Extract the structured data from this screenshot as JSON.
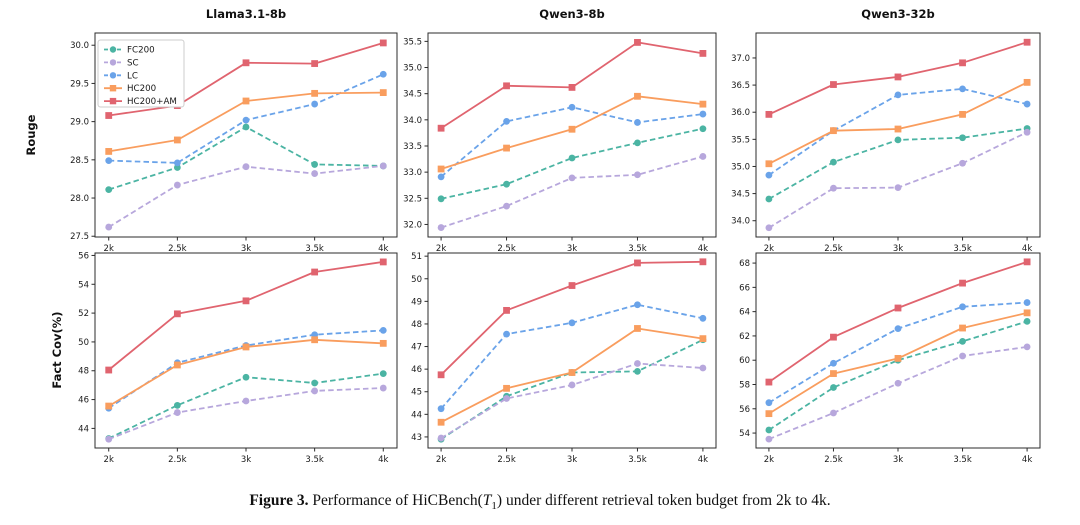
{
  "caption": {
    "label": "Figure 3.",
    "before": " Performance of HiCBench(",
    "t_italic": "T",
    "t_subscript": "1",
    "after": ") under different retrieval token budget from 2k to 4k."
  },
  "series_styles": [
    {
      "name": "FC200",
      "color": "#4bb4a3",
      "line": "dashed",
      "marker": "circle"
    },
    {
      "name": "SC",
      "color": "#b7a7dc",
      "line": "dashed",
      "marker": "circle"
    },
    {
      "name": "LC",
      "color": "#6aa3e9",
      "line": "dashed",
      "marker": "circle"
    },
    {
      "name": "HC200",
      "color": "#f99d5e",
      "line": "solid",
      "marker": "square"
    },
    {
      "name": "HC200+AM",
      "color": "#e0646f",
      "line": "solid",
      "marker": "square"
    }
  ],
  "chart_data": [
    {
      "type": "line",
      "title": "Llama3.1-8b",
      "ylabel": "Rouge",
      "legend": true,
      "grid": false,
      "categories": [
        "2k",
        "2.5k",
        "3k",
        "3.5k",
        "4k"
      ],
      "ylim": [
        27.49,
        30.16
      ],
      "yticks": [
        27.5,
        28.0,
        28.5,
        29.0,
        29.5,
        30.0
      ],
      "ytick_labels": [
        "27.5",
        "28.0",
        "28.5",
        "29.0",
        "29.5",
        "30.0"
      ],
      "series": [
        {
          "name": "FC200",
          "values": [
            28.11,
            28.4,
            28.93,
            28.44,
            28.42
          ]
        },
        {
          "name": "SC",
          "values": [
            27.62,
            28.17,
            28.41,
            28.32,
            28.42
          ]
        },
        {
          "name": "LC",
          "values": [
            28.49,
            28.46,
            29.02,
            29.23,
            29.62
          ]
        },
        {
          "name": "HC200",
          "values": [
            28.61,
            28.76,
            29.27,
            29.37,
            29.38
          ]
        },
        {
          "name": "HC200+AM",
          "values": [
            29.08,
            29.21,
            29.77,
            29.76,
            30.03
          ]
        }
      ]
    },
    {
      "type": "line",
      "title": "Qwen3-8b",
      "ylabel": "",
      "legend": false,
      "grid": false,
      "categories": [
        "2k",
        "2.5k",
        "3k",
        "3.5k",
        "4k"
      ],
      "ylim": [
        31.76,
        35.66
      ],
      "yticks": [
        32.0,
        32.5,
        33.0,
        33.5,
        34.0,
        34.5,
        35.0,
        35.5
      ],
      "ytick_labels": [
        "32.0",
        "32.5",
        "33.0",
        "33.5",
        "34.0",
        "34.5",
        "35.0",
        "35.5"
      ],
      "series": [
        {
          "name": "FC200",
          "values": [
            32.49,
            32.77,
            33.27,
            33.56,
            33.83
          ]
        },
        {
          "name": "SC",
          "values": [
            31.94,
            32.35,
            32.89,
            32.95,
            33.3
          ]
        },
        {
          "name": "LC",
          "values": [
            32.91,
            33.97,
            34.24,
            33.95,
            34.11
          ]
        },
        {
          "name": "HC200",
          "values": [
            33.06,
            33.46,
            33.82,
            34.45,
            34.3
          ]
        },
        {
          "name": "HC200+AM",
          "values": [
            33.84,
            34.65,
            34.62,
            35.48,
            35.27
          ]
        }
      ]
    },
    {
      "type": "line",
      "title": "Qwen3-32b",
      "ylabel": "",
      "legend": false,
      "grid": false,
      "categories": [
        "2k",
        "2.5k",
        "3k",
        "3.5k",
        "4k"
      ],
      "ylim": [
        33.7,
        37.46
      ],
      "yticks": [
        34.0,
        34.5,
        35.0,
        35.5,
        36.0,
        36.5,
        37.0
      ],
      "ytick_labels": [
        "34.0",
        "34.5",
        "35.0",
        "35.5",
        "36.0",
        "36.5",
        "37.0"
      ],
      "series": [
        {
          "name": "FC200",
          "values": [
            34.4,
            35.08,
            35.49,
            35.53,
            35.7
          ]
        },
        {
          "name": "SC",
          "values": [
            33.87,
            34.6,
            34.61,
            35.06,
            35.63
          ]
        },
        {
          "name": "LC",
          "values": [
            34.84,
            35.66,
            36.32,
            36.43,
            36.15
          ]
        },
        {
          "name": "HC200",
          "values": [
            35.05,
            35.66,
            35.69,
            35.96,
            36.55
          ]
        },
        {
          "name": "HC200+AM",
          "values": [
            35.96,
            36.51,
            36.65,
            36.91,
            37.29
          ]
        }
      ]
    },
    {
      "type": "line",
      "title": "",
      "ylabel": "Fact Cov(%)",
      "legend": false,
      "grid": false,
      "categories": [
        "2k",
        "2.5k",
        "3k",
        "3.5k",
        "4k"
      ],
      "ylim": [
        42.64,
        56.17
      ],
      "yticks": [
        44,
        46,
        48,
        50,
        52,
        54,
        56
      ],
      "ytick_labels": [
        "44",
        "46",
        "48",
        "50",
        "52",
        "54",
        "56"
      ],
      "series": [
        {
          "name": "FC200",
          "values": [
            43.3,
            45.6,
            47.55,
            47.15,
            47.8
          ]
        },
        {
          "name": "SC",
          "values": [
            43.25,
            45.1,
            45.9,
            46.6,
            46.8
          ]
        },
        {
          "name": "LC",
          "values": [
            45.4,
            48.55,
            49.75,
            50.5,
            50.8
          ]
        },
        {
          "name": "HC200",
          "values": [
            45.55,
            48.4,
            49.65,
            50.15,
            49.9
          ]
        },
        {
          "name": "HC200+AM",
          "values": [
            48.05,
            51.95,
            52.85,
            54.85,
            55.55
          ]
        }
      ]
    },
    {
      "type": "line",
      "title": "",
      "ylabel": "",
      "legend": false,
      "grid": false,
      "categories": [
        "2k",
        "2.5k",
        "3k",
        "3.5k",
        "4k"
      ],
      "ylim": [
        42.51,
        51.14
      ],
      "yticks": [
        43,
        44,
        45,
        46,
        47,
        48,
        49,
        50,
        51
      ],
      "ytick_labels": [
        "43",
        "44",
        "45",
        "46",
        "47",
        "48",
        "49",
        "50",
        "51"
      ],
      "series": [
        {
          "name": "FC200",
          "values": [
            42.9,
            44.8,
            45.85,
            45.9,
            47.3
          ]
        },
        {
          "name": "SC",
          "values": [
            42.95,
            44.7,
            45.3,
            46.25,
            46.05
          ]
        },
        {
          "name": "LC",
          "values": [
            44.25,
            47.55,
            48.05,
            48.85,
            48.25
          ]
        },
        {
          "name": "HC200",
          "values": [
            43.65,
            45.15,
            45.85,
            47.8,
            47.35
          ]
        },
        {
          "name": "HC200+AM",
          "values": [
            45.75,
            48.6,
            49.7,
            50.7,
            50.75
          ]
        }
      ]
    },
    {
      "type": "line",
      "title": "",
      "ylabel": "",
      "legend": false,
      "grid": false,
      "categories": [
        "2k",
        "2.5k",
        "3k",
        "3.5k",
        "4k"
      ],
      "ylim": [
        52.77,
        68.83
      ],
      "yticks": [
        54,
        56,
        58,
        60,
        62,
        64,
        66,
        68
      ],
      "ytick_labels": [
        "54",
        "56",
        "58",
        "60",
        "62",
        "64",
        "66",
        "68"
      ],
      "series": [
        {
          "name": "FC200",
          "values": [
            54.25,
            57.75,
            60.0,
            61.55,
            63.2
          ]
        },
        {
          "name": "SC",
          "values": [
            53.5,
            55.65,
            58.1,
            60.35,
            61.1
          ]
        },
        {
          "name": "LC",
          "values": [
            56.5,
            59.75,
            62.6,
            64.4,
            64.75
          ]
        },
        {
          "name": "HC200",
          "values": [
            55.6,
            58.9,
            60.15,
            62.65,
            63.9
          ]
        },
        {
          "name": "HC200+AM",
          "values": [
            58.2,
            61.9,
            64.3,
            66.35,
            68.1
          ]
        }
      ]
    }
  ],
  "axis": {
    "border_color": "#2b2b2b",
    "tick_color": "#2b2b2b",
    "text_color": "#1a1a1a"
  }
}
